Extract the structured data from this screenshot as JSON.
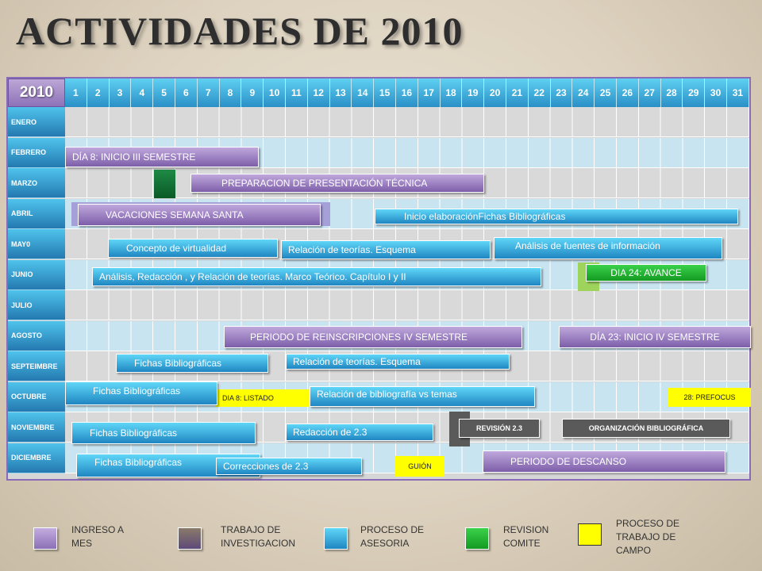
{
  "title": "ACTIVIDADES DE 2010",
  "year": "2010",
  "days": [
    "1",
    "2",
    "3",
    "4",
    "5",
    "6",
    "7",
    "8",
    "9",
    "10",
    "11",
    "12",
    "13",
    "14",
    "15",
    "16",
    "17",
    "18",
    "19",
    "20",
    "21",
    "22",
    "23",
    "24",
    "25",
    "26",
    "27",
    "28",
    "29",
    "30",
    "31"
  ],
  "months": [
    "ENERO",
    "FEBRERO",
    "MARZO",
    "ABRIL",
    "MAY0",
    "JUNIO",
    "JULIO",
    "AGOSTO",
    "SEPTEIMBRE",
    "OCTUBRE",
    "NOVIEMBRE",
    "DICIEMBRE"
  ],
  "events": {
    "feb_inicio": "DÍA 8: INICIO III SEMESTRE",
    "mar_preparacion": "PREPARACION DE PRESENTACIÓN TÉCNICA",
    "abr_vacaciones": "VACACIONES SEMANA SANTA",
    "abr_fichas": "Inicio elaboraciónFichas Bibliográficas",
    "may_concepto": "Concepto de virtualidad",
    "may_relacion": "Relación de teorías. Esquema",
    "may_analisis": "Análisis de  fuentes de información",
    "jun_analisis": "Análisis, Redacción , y  Relación de teorías. Marco Teórico. Capítulo I y II",
    "jun_avance": "DIA 24: AVANCE",
    "ago_reinscripciones": "PERIODO DE REINSCRIPCIONES IV SEMESTRE",
    "ago_inicio": "DÍA 23: INICIO IV SEMESTRE",
    "sep_fichas": "Fichas Bibliográficas",
    "sep_relacion": "Relación de teorías. Esquema",
    "oct_fichas": "Fichas Bibliográficas",
    "oct_listado": "DIA  8: LISTADO",
    "oct_relacion": "Relación de bibliografía vs temas",
    "oct_prefocus": "28: PREFOCUS",
    "nov_fichas": "Fichas Bibliográficas",
    "nov_redaccion": "Redacción de 2.3",
    "nov_revision": "REVISIÓN 2.3",
    "nov_organizacion": "ORGANIZACIÓN BIBLIOGRÁFICA",
    "dic_fichas": "Fichas Bibliográficas",
    "dic_correcciones": "Correcciones de 2.3",
    "dic_guion": "GUIÓN",
    "dic_descanso": "PERIODO  DE  DESCANSO"
  },
  "legend": [
    {
      "label": "INGRESO A MES",
      "color": "#a890c8"
    },
    {
      "label": "TRABAJO DE INVESTIGACION",
      "color": "#6e5a7a"
    },
    {
      "label": "PROCESO DE ASESORIA",
      "color": "#2f9ad3"
    },
    {
      "label": "REVISION COMITE",
      "color": "#1fb12a"
    },
    {
      "label": "PROCESO DE TRABAJO DE CAMPO",
      "color": "#ffff00"
    }
  ]
}
